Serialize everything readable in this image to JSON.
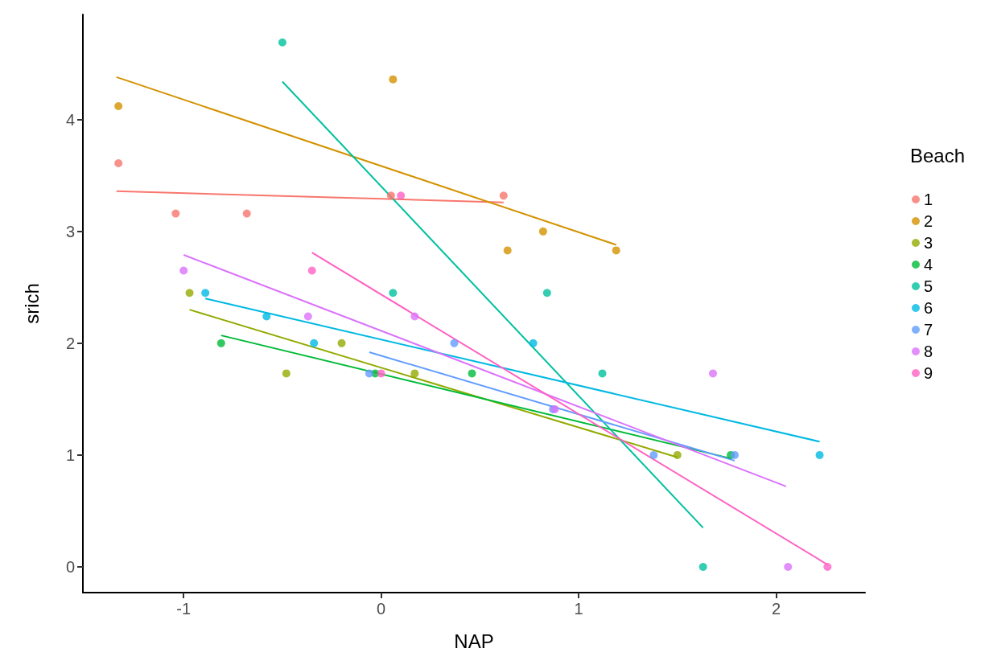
{
  "chart_data": {
    "type": "scatter",
    "xlabel": "NAP",
    "ylabel": "srich",
    "legend_title": "Beach",
    "legend": "right",
    "marker": "circle",
    "grid": false,
    "xlim": [
      -1.51,
      2.45
    ],
    "ylim": [
      -0.23,
      4.94
    ],
    "xticks": [
      -1,
      0,
      1,
      2
    ],
    "yticks": [
      0,
      1,
      2,
      3,
      4
    ],
    "series": [
      {
        "name": "1",
        "color": "#F8766D",
        "x": [
          -1.33,
          -1.04,
          -0.68,
          0.05,
          0.62
        ],
        "values": [
          3.61,
          3.16,
          3.16,
          3.32,
          3.32
        ]
      },
      {
        "name": "2",
        "color": "#D39200",
        "x": [
          -1.33,
          0.06,
          0.64,
          0.82,
          1.19
        ],
        "values": [
          4.12,
          4.36,
          2.83,
          3.0,
          2.83
        ]
      },
      {
        "name": "3",
        "color": "#93AA00",
        "x": [
          -0.97,
          -0.48,
          -0.2,
          0.17,
          1.5
        ],
        "values": [
          2.45,
          1.73,
          2.0,
          1.73,
          1.0
        ]
      },
      {
        "name": "4",
        "color": "#00BA38",
        "x": [
          -0.81,
          -0.03,
          0.46,
          1.77
        ],
        "values": [
          2.0,
          1.73,
          1.73,
          1.0
        ]
      },
      {
        "name": "5",
        "color": "#00C19F",
        "x": [
          -0.5,
          0.06,
          0.84,
          1.12,
          1.63
        ],
        "values": [
          4.69,
          2.45,
          2.45,
          1.73,
          0
        ]
      },
      {
        "name": "6",
        "color": "#00B9E3",
        "x": [
          -0.89,
          -0.58,
          -0.34,
          0.77,
          2.22
        ],
        "values": [
          2.45,
          2.24,
          2.0,
          2.0,
          1.0
        ]
      },
      {
        "name": "7",
        "color": "#619CFF",
        "x": [
          -0.06,
          0.37,
          0.87,
          1.38,
          1.79
        ],
        "values": [
          1.73,
          2.0,
          1.41,
          1.0,
          1.0
        ]
      },
      {
        "name": "8",
        "color": "#DB72FB",
        "x": [
          -1.0,
          -0.37,
          0.17,
          0.88,
          1.68,
          2.06
        ],
        "values": [
          2.65,
          2.24,
          2.24,
          1.41,
          1.73,
          0
        ]
      },
      {
        "name": "9",
        "color": "#FF61C3",
        "x": [
          -0.35,
          0.0,
          0.1,
          2.26
        ],
        "values": [
          2.65,
          1.73,
          3.32,
          0
        ]
      },
      {
        "type": "line",
        "marker": "none",
        "color": "#F8766D",
        "x": [
          -1.34,
          0.62
        ],
        "values": [
          3.36,
          3.26
        ]
      },
      {
        "type": "line",
        "marker": "none",
        "color": "#D39200",
        "x": [
          -1.34,
          1.19
        ],
        "values": [
          4.38,
          2.88
        ]
      },
      {
        "type": "line",
        "marker": "none",
        "color": "#93AA00",
        "x": [
          -0.97,
          1.5
        ],
        "values": [
          2.3,
          0.98
        ]
      },
      {
        "type": "line",
        "marker": "none",
        "color": "#00BA38",
        "x": [
          -0.81,
          1.77
        ],
        "values": [
          2.07,
          0.97
        ]
      },
      {
        "type": "line",
        "marker": "none",
        "color": "#00C19F",
        "x": [
          -0.5,
          1.63
        ],
        "values": [
          4.34,
          0.35
        ]
      },
      {
        "type": "line",
        "marker": "none",
        "color": "#00B9E3",
        "x": [
          -0.89,
          2.22
        ],
        "values": [
          2.4,
          1.12
        ]
      },
      {
        "type": "line",
        "marker": "none",
        "color": "#619CFF",
        "x": [
          -0.06,
          1.79
        ],
        "values": [
          1.92,
          0.95
        ]
      },
      {
        "type": "line",
        "marker": "none",
        "color": "#DB72FB",
        "x": [
          -1.0,
          2.05
        ],
        "values": [
          2.79,
          0.72
        ]
      },
      {
        "type": "line",
        "marker": "none",
        "color": "#FF61C3",
        "x": [
          -0.35,
          2.26
        ],
        "values": [
          2.81,
          0.02
        ]
      }
    ]
  }
}
